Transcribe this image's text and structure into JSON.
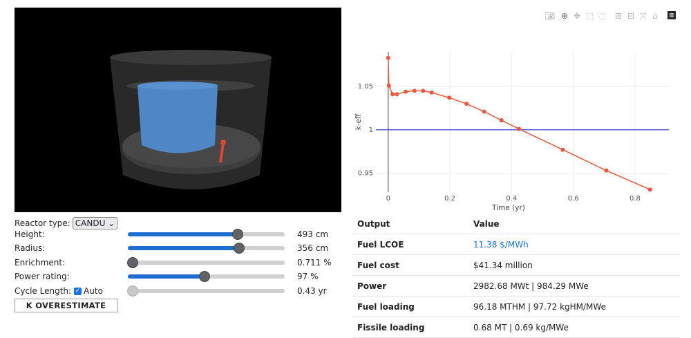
{
  "controls": {
    "reactor_type_label": "Reactor type:",
    "reactor_type_value": "CANDU",
    "height": {
      "label": "Height:",
      "value": "493 cm",
      "fraction": 0.7
    },
    "radius": {
      "label": "Radius:",
      "value": "356 cm",
      "fraction": 0.71
    },
    "enrichment": {
      "label": "Enrichment:",
      "value": "0.711 %",
      "fraction": 0.03
    },
    "power": {
      "label": "Power rating:",
      "value": "97 %",
      "fraction": 0.49
    },
    "cycle": {
      "label": "Cycle Length:",
      "auto_label": "Auto",
      "value": "0.43 yr",
      "fraction": 0.03
    },
    "estimate_button": "K OVERESTIMATE"
  },
  "modebar": [
    "camera-icon",
    "zoom-icon",
    "pan-icon",
    "box-select-icon",
    "lasso-icon",
    "zoom-in-icon",
    "zoom-out-icon",
    "autoscale-icon",
    "reset-axes-icon",
    "plotly-logo-icon"
  ],
  "chart_data": {
    "type": "line",
    "xlabel": "Time (yr)",
    "ylabel": "k-eff",
    "xlim": [
      -0.04,
      0.91
    ],
    "ylim": [
      0.928,
      1.09
    ],
    "xticks": [
      0,
      0.2,
      0.4,
      0.6,
      0.8
    ],
    "xtick_labels": [
      "0",
      "0.2",
      "0.4",
      "0.6",
      "0.8"
    ],
    "yticks": [
      0.95,
      1,
      1.05
    ],
    "ytick_labels": [
      "0.95",
      "1",
      "1.05"
    ],
    "reference_line": 1,
    "grid": true,
    "colors": {
      "series": "#ef553b",
      "reference": "#3b3bd4"
    },
    "x": [
      0,
      0.002,
      0.014,
      0.028,
      0.057,
      0.085,
      0.113,
      0.141,
      0.198,
      0.254,
      0.311,
      0.367,
      0.424,
      0.566,
      0.707,
      0.849
    ],
    "y": [
      1.083,
      1.051,
      1.041,
      1.041,
      1.044,
      1.045,
      1.045,
      1.043,
      1.037,
      1.03,
      1.021,
      1.011,
      1.001,
      0.977,
      0.953,
      0.931
    ]
  },
  "output_table": {
    "headers": [
      "Output",
      "Value"
    ],
    "rows": [
      {
        "key": "Fuel LCOE",
        "value": "11.38 $/MWh"
      },
      {
        "key": "Fuel cost",
        "value": "$41.34 million"
      },
      {
        "key": "Power",
        "value": "2982.68 MWt | 984.29 MWe"
      },
      {
        "key": "Fuel loading",
        "value": "96.18 MTHM | 97.72 kgHM/MWe"
      },
      {
        "key": "Fissile loading",
        "value": "0.68 MT | 0.69 kg/MWe"
      }
    ]
  }
}
